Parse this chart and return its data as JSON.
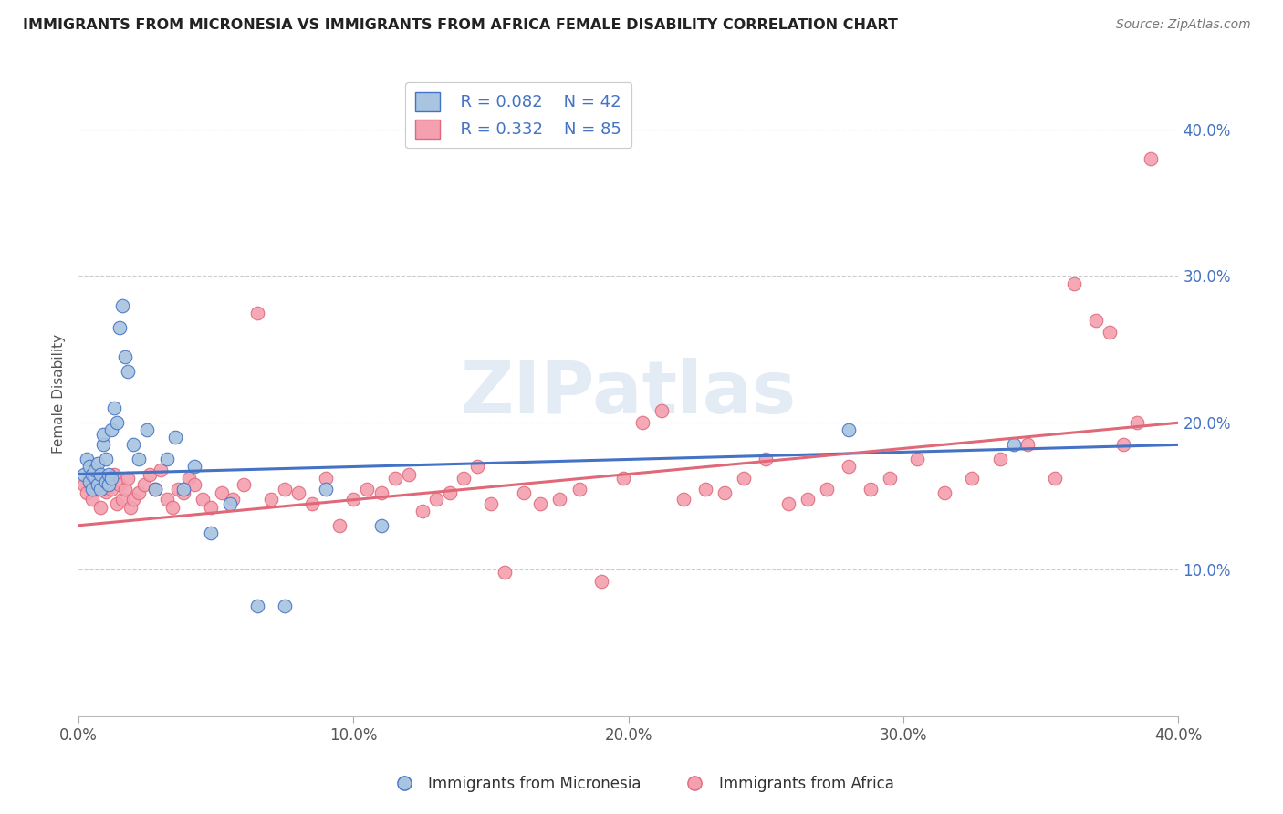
{
  "title": "IMMIGRANTS FROM MICRONESIA VS IMMIGRANTS FROM AFRICA FEMALE DISABILITY CORRELATION CHART",
  "source": "Source: ZipAtlas.com",
  "ylabel": "Female Disability",
  "xlim": [
    0.0,
    0.4
  ],
  "ylim": [
    0.0,
    0.44
  ],
  "x_tick_labels": [
    "0.0%",
    "10.0%",
    "20.0%",
    "30.0%",
    "40.0%"
  ],
  "x_tick_vals": [
    0.0,
    0.1,
    0.2,
    0.3,
    0.4
  ],
  "y_tick_labels": [
    "10.0%",
    "20.0%",
    "30.0%",
    "40.0%"
  ],
  "y_tick_vals": [
    0.1,
    0.2,
    0.3,
    0.4
  ],
  "legend_r1": "R = 0.082",
  "legend_n1": "N = 42",
  "legend_r2": "R = 0.332",
  "legend_n2": "N = 85",
  "micronesia_color": "#a8c4e0",
  "africa_color": "#f4a0b0",
  "line_blue": "#4472c4",
  "line_pink": "#e06878",
  "watermark": "ZIPatlas",
  "background": "#ffffff",
  "micronesia_x": [
    0.002,
    0.003,
    0.004,
    0.004,
    0.005,
    0.005,
    0.006,
    0.006,
    0.007,
    0.007,
    0.008,
    0.008,
    0.009,
    0.009,
    0.01,
    0.01,
    0.011,
    0.011,
    0.012,
    0.012,
    0.013,
    0.014,
    0.015,
    0.016,
    0.017,
    0.018,
    0.02,
    0.022,
    0.025,
    0.028,
    0.032,
    0.035,
    0.038,
    0.042,
    0.048,
    0.055,
    0.065,
    0.075,
    0.09,
    0.11,
    0.28,
    0.34
  ],
  "micronesia_y": [
    0.165,
    0.175,
    0.16,
    0.17,
    0.155,
    0.165,
    0.163,
    0.168,
    0.158,
    0.172,
    0.155,
    0.165,
    0.185,
    0.192,
    0.16,
    0.175,
    0.158,
    0.165,
    0.162,
    0.195,
    0.21,
    0.2,
    0.265,
    0.28,
    0.245,
    0.235,
    0.185,
    0.175,
    0.195,
    0.155,
    0.175,
    0.19,
    0.155,
    0.17,
    0.125,
    0.145,
    0.075,
    0.075,
    0.155,
    0.13,
    0.195,
    0.185
  ],
  "africa_x": [
    0.002,
    0.003,
    0.004,
    0.005,
    0.006,
    0.007,
    0.008,
    0.009,
    0.01,
    0.011,
    0.012,
    0.013,
    0.014,
    0.015,
    0.016,
    0.017,
    0.018,
    0.019,
    0.02,
    0.022,
    0.024,
    0.026,
    0.028,
    0.03,
    0.032,
    0.034,
    0.036,
    0.038,
    0.04,
    0.042,
    0.045,
    0.048,
    0.052,
    0.056,
    0.06,
    0.065,
    0.07,
    0.075,
    0.08,
    0.085,
    0.09,
    0.095,
    0.1,
    0.105,
    0.11,
    0.115,
    0.12,
    0.125,
    0.13,
    0.135,
    0.14,
    0.145,
    0.15,
    0.155,
    0.162,
    0.168,
    0.175,
    0.182,
    0.19,
    0.198,
    0.205,
    0.212,
    0.22,
    0.228,
    0.235,
    0.242,
    0.25,
    0.258,
    0.265,
    0.272,
    0.28,
    0.288,
    0.295,
    0.305,
    0.315,
    0.325,
    0.335,
    0.345,
    0.355,
    0.362,
    0.37,
    0.375,
    0.38,
    0.385,
    0.39
  ],
  "africa_y": [
    0.158,
    0.152,
    0.162,
    0.148,
    0.155,
    0.165,
    0.142,
    0.158,
    0.153,
    0.162,
    0.155,
    0.165,
    0.145,
    0.158,
    0.148,
    0.155,
    0.162,
    0.142,
    0.148,
    0.152,
    0.158,
    0.165,
    0.155,
    0.168,
    0.148,
    0.142,
    0.155,
    0.152,
    0.162,
    0.158,
    0.148,
    0.142,
    0.152,
    0.148,
    0.158,
    0.275,
    0.148,
    0.155,
    0.152,
    0.145,
    0.162,
    0.13,
    0.148,
    0.155,
    0.152,
    0.162,
    0.165,
    0.14,
    0.148,
    0.152,
    0.162,
    0.17,
    0.145,
    0.098,
    0.152,
    0.145,
    0.148,
    0.155,
    0.092,
    0.162,
    0.2,
    0.208,
    0.148,
    0.155,
    0.152,
    0.162,
    0.175,
    0.145,
    0.148,
    0.155,
    0.17,
    0.155,
    0.162,
    0.175,
    0.152,
    0.162,
    0.175,
    0.185,
    0.162,
    0.295,
    0.27,
    0.262,
    0.185,
    0.2,
    0.38
  ]
}
